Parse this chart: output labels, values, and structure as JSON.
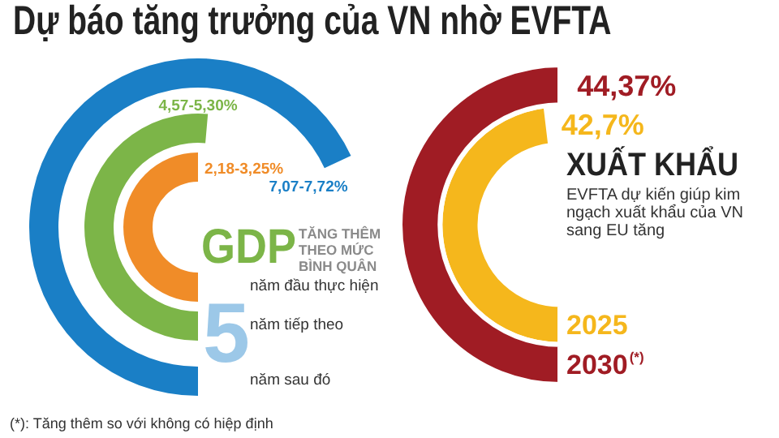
{
  "chart_data": [
    {
      "type": "other",
      "title": "Dự báo tăng trưởng của VN nhờ EVFTA",
      "categories": [
        "năm đầu thực hiện",
        "năm tiếp theo",
        "năm sau đó"
      ],
      "value_labels": [
        "2,18-3,25%",
        "4,57-5,30%",
        "7,07-7,72%"
      ],
      "colors": [
        "#f08c28",
        "#7cb548",
        "#1a7fc6"
      ],
      "annotations": [
        "GDP",
        "TĂNG THÊM THEO MỨC BÌNH QUÂN",
        "5",
        "(*): Tăng thêm so với không có hiệp định"
      ]
    },
    {
      "type": "other",
      "title": "XUẤT KHẨU",
      "subtitle": "EVFTA dự kiến giúp kim ngạch xuất khẩu của VN sang EU tăng",
      "categories": [
        "2025",
        "2030$^{(*)}$"
      ],
      "values": [
        42.7,
        44.37
      ],
      "value_labels": [
        "42,7%",
        "44,37%"
      ],
      "colors": [
        "#f5b71c",
        "#a01c24"
      ]
    }
  ]
}
